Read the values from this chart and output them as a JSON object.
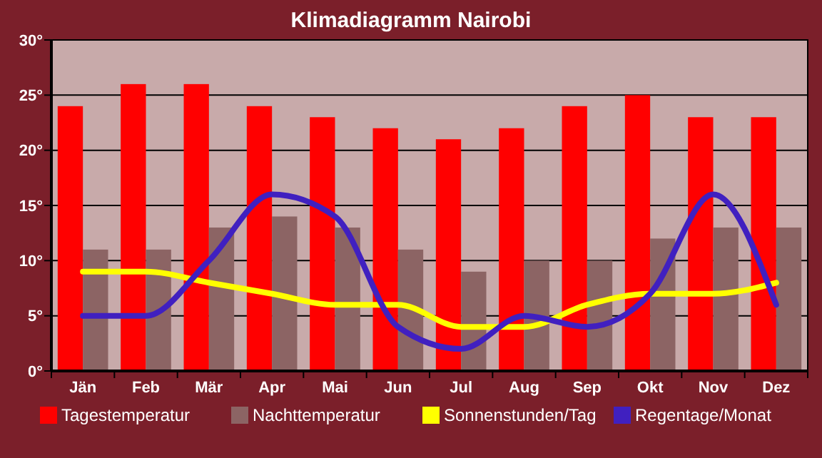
{
  "chart_data": {
    "type": "bar",
    "title": "Klimadiagramm Nairobi",
    "categories": [
      "Jän",
      "Feb",
      "Mär",
      "Apr",
      "Mai",
      "Jun",
      "Jul",
      "Aug",
      "Sep",
      "Okt",
      "Nov",
      "Dez"
    ],
    "series": [
      {
        "name": "Tagestemperatur",
        "color": "#ff0000",
        "values": [
          24,
          26,
          26,
          24,
          23,
          22,
          21,
          22,
          24,
          25,
          23,
          23
        ]
      },
      {
        "name": "Nachttemperatur",
        "color": "#8c6464",
        "values": [
          11,
          11,
          13,
          14,
          13,
          11,
          9,
          10,
          10,
          12,
          13,
          13
        ]
      },
      {
        "name": "Sonnenstunden/Tag",
        "type": "line",
        "color": "#ffff00",
        "values": [
          9,
          9,
          8,
          7,
          6,
          6,
          4,
          4,
          6,
          7,
          7,
          8
        ]
      },
      {
        "name": "Regentage/Monat",
        "type": "line",
        "color": "#4020c0",
        "values": [
          5,
          5,
          10,
          16,
          14,
          4,
          2,
          5,
          4,
          7,
          16,
          6
        ]
      }
    ],
    "ylim": [
      0,
      30
    ],
    "yticks": [
      {
        "value": 0,
        "label": "0°"
      },
      {
        "value": 5,
        "label": "5°"
      },
      {
        "value": 10,
        "label": "10°"
      },
      {
        "value": 15,
        "label": "15°"
      },
      {
        "value": 20,
        "label": "20°"
      },
      {
        "value": 25,
        "label": "25°"
      },
      {
        "value": 30,
        "label": "30°"
      }
    ],
    "grid": "y",
    "legend": "bottom"
  }
}
